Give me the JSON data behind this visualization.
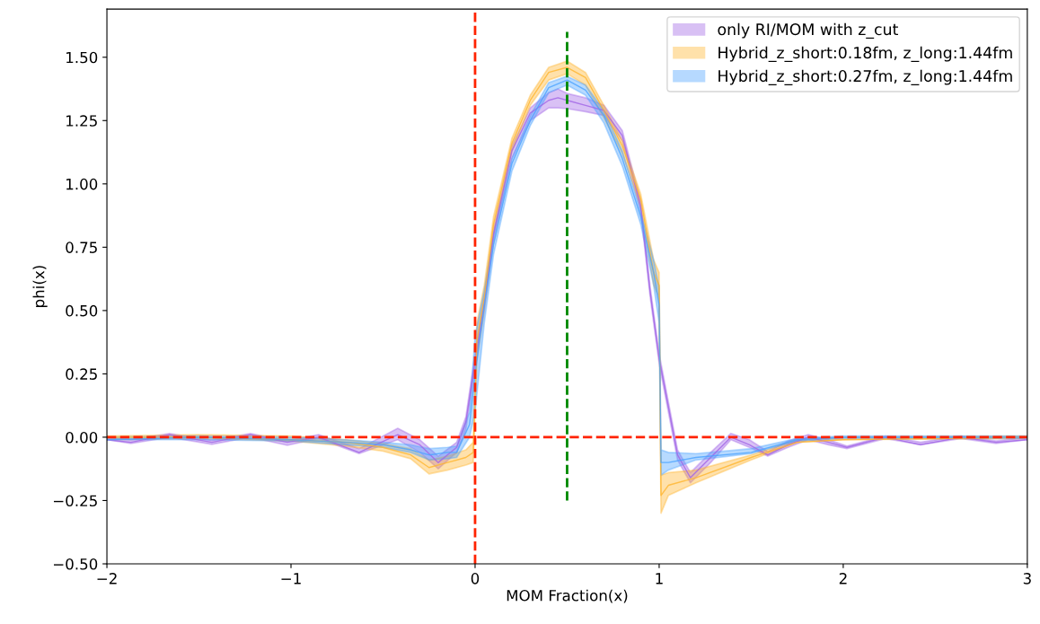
{
  "chart_data": {
    "type": "line",
    "xlabel": "MOM Fraction(x)",
    "ylabel": "phi(x)",
    "xlim": [
      -2,
      3
    ],
    "ylim": [
      -0.5,
      1.69
    ],
    "xticks": [
      {
        "value": -2,
        "label": "−2"
      },
      {
        "value": -1,
        "label": "−1"
      },
      0,
      1,
      2,
      3
    ],
    "yticks": [
      {
        "value": -0.5,
        "label": "−0.50"
      },
      {
        "value": -0.25,
        "label": "−0.25"
      },
      {
        "value": 0,
        "label": "0.00"
      },
      {
        "value": 0.25,
        "label": "0.25"
      },
      {
        "value": 0.5,
        "label": "0.50"
      },
      {
        "value": 0.75,
        "label": "0.75"
      },
      {
        "value": 1.0,
        "label": "1.00"
      },
      {
        "value": 1.25,
        "label": "1.25"
      },
      {
        "value": 1.5,
        "label": "1.50"
      }
    ],
    "legend": "top right",
    "grid": false,
    "ref_lines": [
      {
        "axis": "x",
        "value": 0,
        "color": "#ff2200",
        "line_style": "dashed"
      }
    ],
    "series": [
      {
        "name": "only RI/MOM with z_cut",
        "color": "#a064e6",
        "x": [
          -2.0,
          -1.87,
          -1.66,
          -1.43,
          -1.22,
          -1.02,
          -0.85,
          -0.63,
          -0.42,
          -0.3,
          -0.2,
          -0.1,
          -0.05,
          0.0,
          0.05,
          0.1,
          0.2,
          0.3,
          0.4,
          0.45,
          0.5,
          0.6,
          0.7,
          0.8,
          0.9,
          0.95,
          1.0,
          1.05,
          1.1,
          1.17,
          1.28,
          1.39,
          1.49,
          1.59,
          1.7,
          1.81,
          1.92,
          2.02,
          2.23,
          2.42,
          2.64,
          2.83,
          3.0
        ],
        "values": [
          -0.01,
          -0.02,
          0.01,
          -0.02,
          0.01,
          -0.02,
          0.0,
          -0.06,
          0.01,
          -0.03,
          -0.1,
          -0.04,
          0.06,
          0.3,
          0.53,
          0.8,
          1.13,
          1.28,
          1.33,
          1.34,
          1.33,
          1.31,
          1.29,
          1.19,
          0.91,
          0.58,
          0.31,
          0.12,
          -0.07,
          -0.16,
          -0.08,
          0.0,
          -0.03,
          -0.07,
          -0.03,
          0.0,
          -0.02,
          -0.04,
          0.0,
          -0.03,
          0.0,
          -0.02,
          -0.01
        ],
        "lower": [
          -0.01,
          -0.025,
          0.0,
          -0.028,
          0.0,
          -0.032,
          -0.005,
          -0.065,
          -0.01,
          -0.06,
          -0.125,
          -0.06,
          0.03,
          0.27,
          0.5,
          0.77,
          1.1,
          1.25,
          1.3,
          1.3,
          1.297,
          1.285,
          1.27,
          1.17,
          0.89,
          0.56,
          0.29,
          0.1,
          -0.09,
          -0.18,
          -0.1,
          -0.01,
          -0.04,
          -0.075,
          -0.04,
          -0.01,
          -0.03,
          -0.045,
          -0.005,
          -0.03,
          -0.005,
          -0.025,
          -0.01
        ],
        "upper": [
          0.0,
          -0.01,
          0.015,
          -0.012,
          0.015,
          -0.015,
          0.01,
          -0.045,
          0.035,
          -0.01,
          -0.075,
          -0.02,
          0.08,
          0.33,
          0.56,
          0.82,
          1.15,
          1.3,
          1.36,
          1.375,
          1.357,
          1.34,
          1.31,
          1.21,
          0.93,
          0.6,
          0.33,
          0.14,
          -0.05,
          -0.14,
          -0.06,
          0.015,
          -0.01,
          -0.057,
          -0.015,
          0.01,
          -0.01,
          -0.035,
          0.005,
          -0.02,
          0.005,
          -0.015,
          0.0
        ]
      },
      {
        "name": "Hybrid_z_short:0.18fm, z_long:1.44fm",
        "color": "#ffb52e",
        "x": [
          -2.0,
          -1.5,
          -1.0,
          -0.7,
          -0.5,
          -0.35,
          -0.25,
          -0.15,
          -0.05,
          -0.01,
          0.01,
          0.05,
          0.1,
          0.2,
          0.3,
          0.4,
          0.5,
          0.6,
          0.7,
          0.8,
          0.9,
          0.97,
          1.0,
          1.01,
          1.05,
          1.2,
          1.5,
          1.75,
          2.0,
          3.0
        ],
        "values": [
          0.0,
          0.0,
          -0.01,
          -0.02,
          -0.04,
          -0.07,
          -0.12,
          -0.1,
          -0.08,
          -0.06,
          0.38,
          0.55,
          0.84,
          1.16,
          1.33,
          1.44,
          1.46,
          1.42,
          1.29,
          1.15,
          0.94,
          0.65,
          0.6,
          -0.23,
          -0.19,
          -0.16,
          -0.08,
          -0.02,
          -0.01,
          0.0
        ],
        "lower": [
          -0.01,
          -0.005,
          -0.015,
          -0.035,
          -0.055,
          -0.085,
          -0.145,
          -0.13,
          -0.11,
          -0.1,
          0.3,
          0.5,
          0.8,
          1.13,
          1.31,
          1.41,
          1.435,
          1.39,
          1.26,
          1.12,
          0.91,
          0.6,
          0.55,
          -0.3,
          -0.23,
          -0.18,
          -0.09,
          -0.02,
          -0.01,
          -0.005
        ],
        "upper": [
          0.005,
          0.01,
          0.005,
          -0.01,
          -0.025,
          -0.045,
          -0.09,
          -0.075,
          -0.05,
          -0.02,
          0.45,
          0.6,
          0.87,
          1.18,
          1.35,
          1.46,
          1.485,
          1.44,
          1.31,
          1.17,
          0.96,
          0.7,
          0.65,
          -0.15,
          -0.14,
          -0.13,
          -0.07,
          -0.01,
          0.0,
          0.005
        ]
      },
      {
        "name": "Hybrid_z_short:0.27fm, z_long:1.44fm",
        "color": "#4aa3ff",
        "x": [
          -2.0,
          -1.5,
          -1.0,
          -0.7,
          -0.5,
          -0.35,
          -0.25,
          -0.15,
          -0.1,
          -0.03,
          0.0,
          0.05,
          0.1,
          0.2,
          0.3,
          0.4,
          0.5,
          0.6,
          0.7,
          0.8,
          0.9,
          0.97,
          1.0,
          1.01,
          1.05,
          1.2,
          1.5,
          1.75,
          2.0,
          3.0
        ],
        "values": [
          -0.01,
          0.0,
          -0.01,
          -0.02,
          -0.03,
          -0.05,
          -0.07,
          -0.06,
          -0.06,
          0.05,
          0.25,
          0.52,
          0.76,
          1.08,
          1.25,
          1.38,
          1.41,
          1.37,
          1.27,
          1.1,
          0.87,
          0.65,
          0.52,
          -0.1,
          -0.1,
          -0.08,
          -0.06,
          -0.01,
          0.0,
          0.0
        ],
        "lower": [
          -0.01,
          -0.01,
          -0.015,
          -0.03,
          -0.04,
          -0.06,
          -0.09,
          -0.085,
          -0.08,
          0.0,
          0.1,
          0.45,
          0.72,
          1.05,
          1.23,
          1.36,
          1.39,
          1.35,
          1.24,
          1.07,
          0.84,
          0.6,
          0.45,
          -0.15,
          -0.13,
          -0.09,
          -0.065,
          -0.015,
          -0.005,
          -0.005
        ],
        "upper": [
          0.0,
          0.005,
          0.0,
          -0.01,
          -0.02,
          -0.03,
          -0.045,
          -0.04,
          -0.035,
          0.1,
          0.4,
          0.58,
          0.8,
          1.1,
          1.27,
          1.4,
          1.425,
          1.39,
          1.29,
          1.13,
          0.89,
          0.7,
          0.59,
          -0.05,
          -0.06,
          -0.065,
          -0.045,
          -0.005,
          0.005,
          0.005
        ]
      },
      {
        "line_style": "dashed",
        "color": "#008800",
        "x": [
          0.5,
          0.5
        ],
        "values": [
          -0.25,
          1.6
        ]
      },
      {
        "line_style": "dashed",
        "color": "#ff2200",
        "x": [
          -2,
          3
        ],
        "values": [
          0,
          0
        ]
      }
    ]
  }
}
